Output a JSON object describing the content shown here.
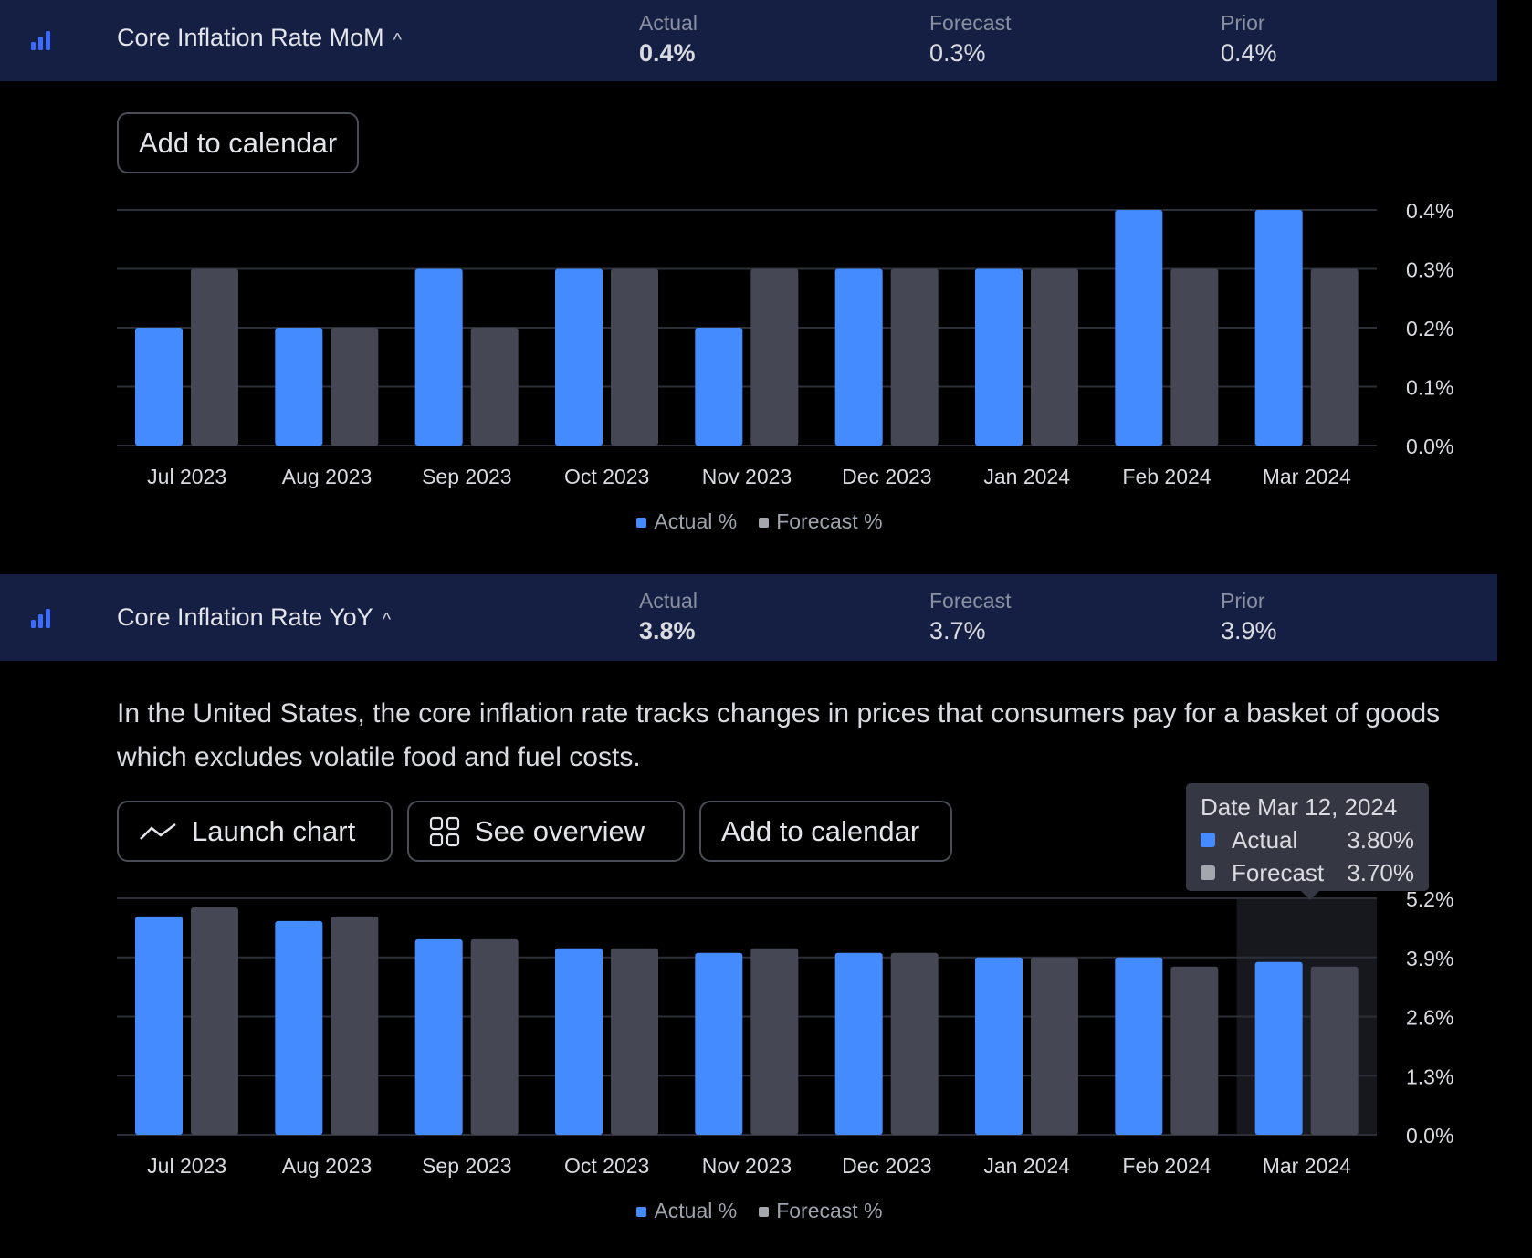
{
  "colors": {
    "actual": "#448bff",
    "forecast": "#454754",
    "header": "#151f44"
  },
  "mom": {
    "title": "Core Inflation Rate MoM",
    "actual_label": "Actual",
    "actual": "0.4%",
    "forecast_label": "Forecast",
    "forecast": "0.3%",
    "prior_label": "Prior",
    "prior": "0.4%",
    "add_calendar": "Add to calendar"
  },
  "yoy": {
    "title": "Core Inflation Rate YoY",
    "actual_label": "Actual",
    "actual": "3.8%",
    "forecast_label": "Forecast",
    "forecast": "3.7%",
    "prior_label": "Prior",
    "prior": "3.9%",
    "description": "In the United States, the core inflation rate tracks changes in prices that consumers pay for a basket of goods which excludes volatile food and fuel costs.",
    "launch_chart": "Launch chart",
    "see_overview": "See overview",
    "add_calendar": "Add to calendar",
    "tooltip": {
      "date": "Date Mar 12, 2024",
      "actual_label": "Actual",
      "actual": "3.80%",
      "forecast_label": "Forecast",
      "forecast": "3.70%"
    }
  },
  "legend": {
    "actual": "Actual %",
    "forecast": "Forecast %"
  },
  "chart_data": [
    {
      "type": "bar",
      "title": "Core Inflation Rate MoM",
      "categories": [
        "Jul 2023",
        "Aug 2023",
        "Sep 2023",
        "Oct 2023",
        "Nov 2023",
        "Dec 2023",
        "Jan 2024",
        "Feb 2024",
        "Mar 2024"
      ],
      "series": [
        {
          "name": "Actual %",
          "values": [
            0.2,
            0.2,
            0.3,
            0.3,
            0.2,
            0.3,
            0.3,
            0.4,
            0.4
          ]
        },
        {
          "name": "Forecast %",
          "values": [
            0.3,
            0.2,
            0.2,
            0.3,
            0.3,
            0.3,
            0.3,
            0.3,
            0.3
          ]
        }
      ],
      "yticks": [
        "0.0%",
        "0.1%",
        "0.2%",
        "0.3%",
        "0.4%"
      ],
      "ylim": [
        0,
        0.4
      ],
      "grid": true,
      "legend": "bottom"
    },
    {
      "type": "bar",
      "title": "Core Inflation Rate YoY",
      "categories": [
        "Jul 2023",
        "Aug 2023",
        "Sep 2023",
        "Oct 2023",
        "Nov 2023",
        "Dec 2023",
        "Jan 2024",
        "Feb 2024",
        "Mar 2024"
      ],
      "series": [
        {
          "name": "Actual %",
          "values": [
            4.8,
            4.7,
            4.3,
            4.1,
            4.0,
            4.0,
            3.9,
            3.9,
            3.8
          ]
        },
        {
          "name": "Forecast %",
          "values": [
            5.0,
            4.8,
            4.3,
            4.1,
            4.1,
            4.0,
            3.9,
            3.7,
            3.7
          ]
        }
      ],
      "yticks": [
        "0.0%",
        "1.3%",
        "2.6%",
        "3.9%",
        "5.2%"
      ],
      "ylim": [
        0,
        5.2
      ],
      "grid": true,
      "legend": "bottom",
      "highlighted": "Mar 2024"
    }
  ]
}
